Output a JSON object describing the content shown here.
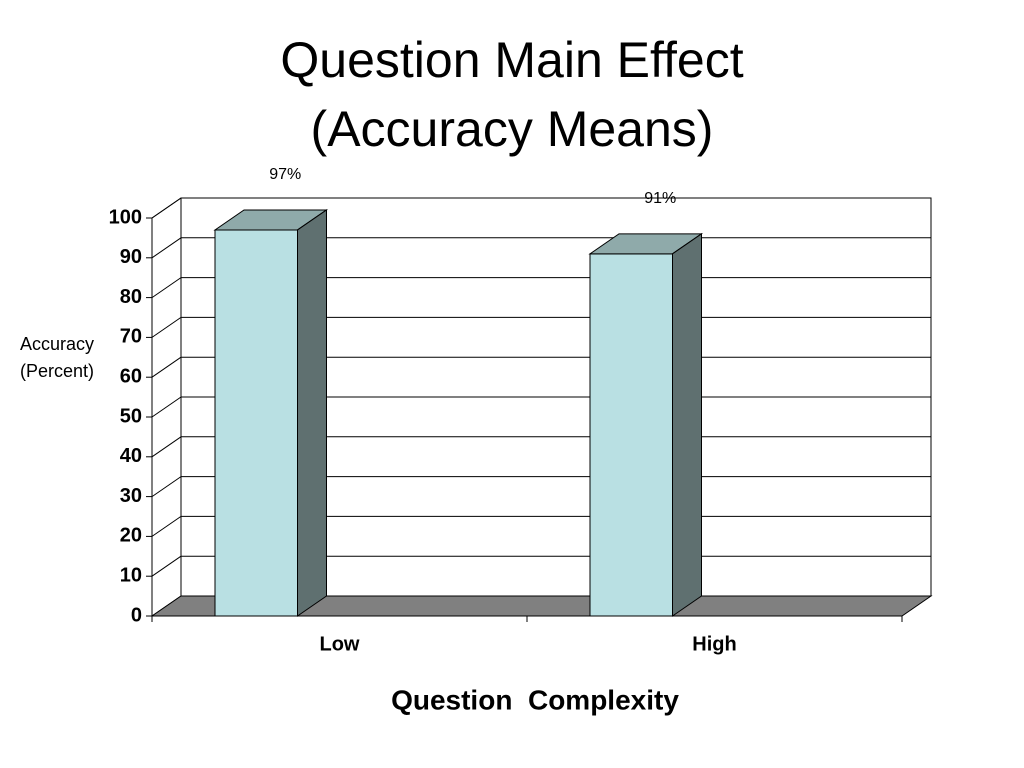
{
  "chart_data": {
    "type": "bar3d",
    "title": "Question Main Effect",
    "subtitle": "(Accuracy Means)",
    "ylabel": [
      "Accuracy",
      "(Percent)"
    ],
    "xlabel": "Question  Complexity",
    "categories": [
      "Low",
      "High"
    ],
    "values": [
      97,
      91
    ],
    "value_labels": [
      "97%",
      "91%"
    ],
    "color": "#b9e0e3",
    "ylim": [
      0,
      100
    ],
    "yticks": [
      0,
      10,
      20,
      30,
      40,
      50,
      60,
      70,
      80,
      90,
      100
    ],
    "grid": true
  }
}
